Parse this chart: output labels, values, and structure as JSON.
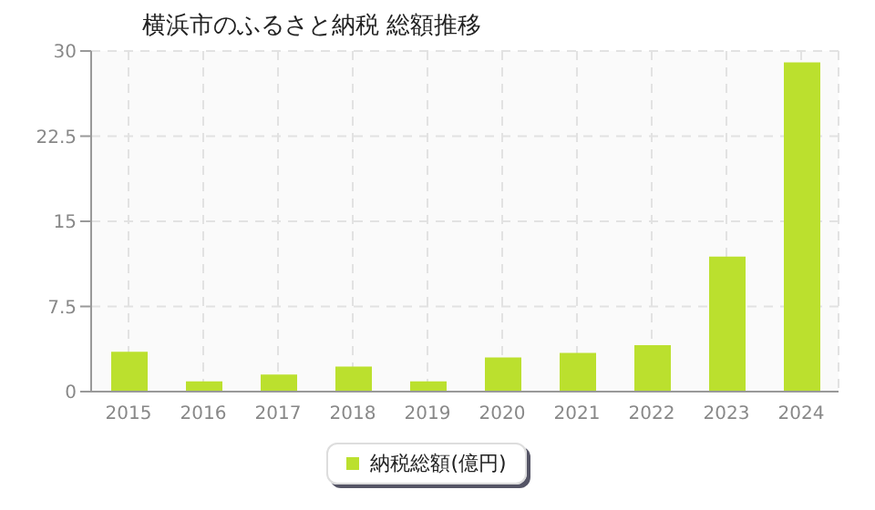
{
  "chart_data": {
    "type": "bar",
    "title": "横浜市のふるさと納税  総額推移",
    "categories": [
      "2015",
      "2016",
      "2017",
      "2018",
      "2019",
      "2020",
      "2021",
      "2022",
      "2023",
      "2024"
    ],
    "series": [
      {
        "name": "納税総額(億円)",
        "color": "#bbe02e",
        "values": [
          3.5,
          0.9,
          1.5,
          2.2,
          0.9,
          3.0,
          3.4,
          4.1,
          11.9,
          29.0
        ]
      }
    ],
    "ylim": [
      0,
      30
    ],
    "yticks": [
      0,
      7.5,
      15,
      22.5,
      30
    ],
    "grid": true,
    "legend": "bottom"
  }
}
